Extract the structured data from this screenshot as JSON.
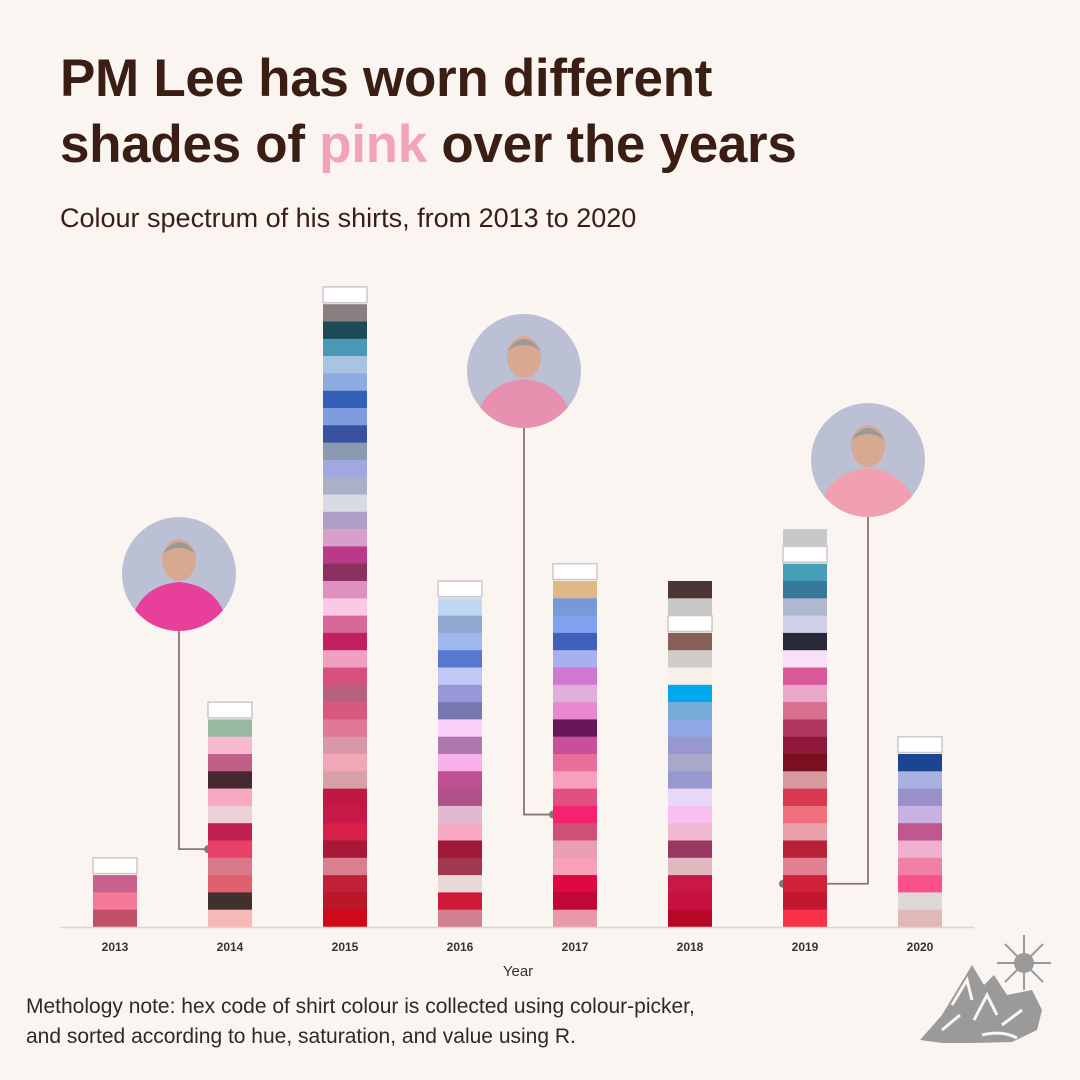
{
  "title": {
    "part1": "PM Lee has worn different",
    "part2": "shades of ",
    "highlight": "pink",
    "part3": " over the years"
  },
  "subtitle": "Colour spectrum of his shirts, from 2013 to 2020",
  "note_line1": "Methology note: hex code of shirt colour is collected using colour-picker,",
  "note_line2": "and sorted according to hue, saturation, and value using R.",
  "colors": {
    "title": "#3a1e14",
    "highlight": "#f2a3b5",
    "background": "#faf5f0"
  },
  "chart_data": {
    "type": "bar",
    "xlabel": "Year",
    "ylabel": "",
    "categories": [
      "2013",
      "2014",
      "2015",
      "2016",
      "2017",
      "2018",
      "2019",
      "2020"
    ],
    "series": [
      {
        "name": "2013",
        "colors_top_to_bottom": [
          "#ffffff",
          "#c86090",
          "#f87898",
          "#c05068"
        ]
      },
      {
        "name": "2014",
        "colors_top_to_bottom": [
          "#ffffff",
          "#98b8a0",
          "#f8b8d0",
          "#c06088",
          "#482830",
          "#f8a8c0",
          "#f0d0d8",
          "#c02050",
          "#e84068",
          "#d87888",
          "#e06070",
          "#403030",
          "#f8b8b8"
        ]
      },
      {
        "name": "2015",
        "colors_top_to_bottom": [
          "#ffffff",
          "#8a7e80",
          "#1c4a55",
          "#4a98b8",
          "#a8c4e0",
          "#8cace0",
          "#3560b8",
          "#7f9ce0",
          "#3850a0",
          "#8a98b0",
          "#a0a8e0",
          "#aab0c8",
          "#d8dae4",
          "#b0a0c8",
          "#d8a0c8",
          "#b83a88",
          "#8c3060",
          "#e090c0",
          "#fcc8e8",
          "#d86898",
          "#c02060",
          "#f0a0c0",
          "#d85080",
          "#b86080",
          "#d85880",
          "#e07898",
          "#d898a8",
          "#f0a8b8",
          "#d8a0a8",
          "#c01840",
          "#c81848",
          "#d82048",
          "#a81838",
          "#d88090",
          "#c02038",
          "#b81828",
          "#d00818"
        ]
      },
      {
        "name": "2016",
        "colors_top_to_bottom": [
          "#ffffff",
          "#c0d8f0",
          "#90a8d0",
          "#a0b8f0",
          "#5878d0",
          "#c0c8f8",
          "#9898d8",
          "#7878b0",
          "#f8d0f8",
          "#b078b0",
          "#f8b0e8",
          "#c05090",
          "#b05088",
          "#e0b8d0",
          "#f8a8c0",
          "#a01838",
          "#a03850",
          "#e8d8d8",
          "#d01838",
          "#d08090"
        ]
      },
      {
        "name": "2017",
        "colors_top_to_bottom": [
          "#ffffff",
          "#e0b888",
          "#7898d8",
          "#80a0f0",
          "#4060c0",
          "#a8b0f0",
          "#d078d0",
          "#e0b0d8",
          "#e888d0",
          "#681858",
          "#c85098",
          "#e87098",
          "#f8a0c0",
          "#e05080",
          "#f82070",
          "#d05078",
          "#e8a0b0",
          "#f8a0b8",
          "#e00840",
          "#c00838",
          "#e898a8"
        ]
      },
      {
        "name": "2018",
        "colors_top_to_bottom": [
          "#4e3535",
          "#c8c8c8",
          "#ffffff",
          "#886058",
          "#d0ccc8",
          "#f8efe8",
          "#00a8f0",
          "#78acd8",
          "#90a8e8",
          "#9898d0",
          "#a8a8c8",
          "#9898d0",
          "#e8d8f8",
          "#f8c0f0",
          "#f0b8d0",
          "#983860",
          "#e0b8c0",
          "#c81848",
          "#c81040",
          "#b80828"
        ]
      },
      {
        "name": "2019",
        "colors_top_to_bottom": [
          "#c8c8c8",
          "#ffffff",
          "#48a0b8",
          "#387898",
          "#b0b8d0",
          "#d0d0e8",
          "#282838",
          "#f8e0f8",
          "#d85898",
          "#e8a8c8",
          "#d87090",
          "#b03860",
          "#901838",
          "#781020",
          "#d898a0",
          "#d83850",
          "#f07080",
          "#e8a0a8",
          "#b82038",
          "#e08090",
          "#d02038",
          "#c01830",
          "#f83048"
        ]
      },
      {
        "name": "2020",
        "colors_top_to_bottom": [
          "#ffffff",
          "#1a4590",
          "#a8b0e0",
          "#9890c8",
          "#c8b0e0",
          "#c05890",
          "#f0b0d0",
          "#f080a8",
          "#f85088",
          "#e0d8d8",
          "#e0b8b8"
        ]
      }
    ],
    "values": [
      4,
      13,
      37,
      20,
      21,
      20,
      23,
      11
    ],
    "annotations": [
      {
        "type": "photo",
        "year": "2014",
        "target_block_from_bottom": 5
      },
      {
        "type": "photo",
        "year": "2017",
        "target_block_from_bottom": 7
      },
      {
        "type": "photo",
        "year": "2019",
        "target_block_from_bottom": 3
      }
    ]
  }
}
